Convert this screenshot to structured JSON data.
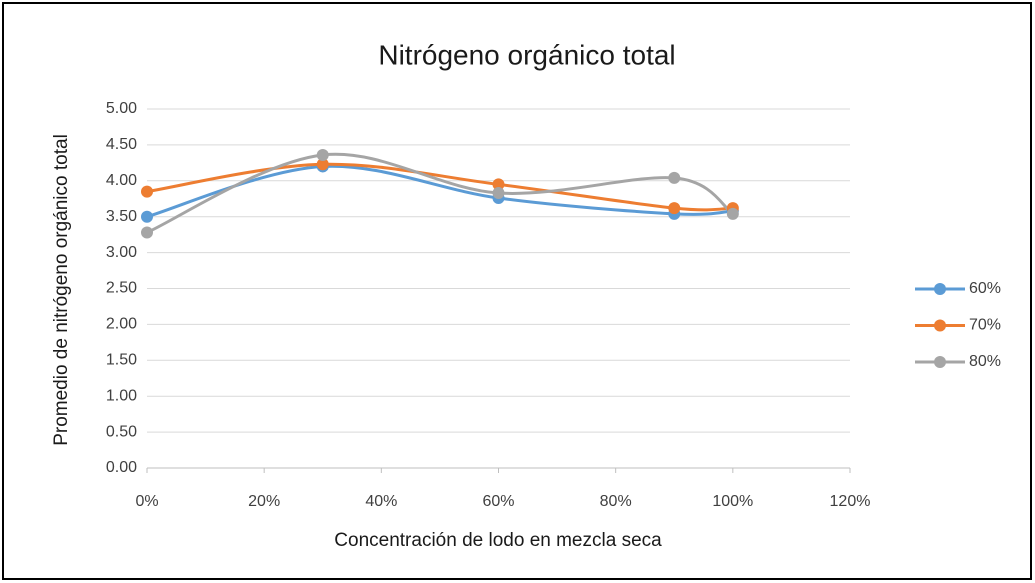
{
  "chart_data": {
    "type": "line",
    "smooth": true,
    "title": "Nitrógeno orgánico total",
    "x_label": "Concentración de lodo en mezcla seca",
    "y_label": "Promedio de nitrógeno orgánico total",
    "x": [
      0,
      30,
      60,
      90,
      100
    ],
    "series": [
      {
        "name": "60%",
        "color": "#5b9bd5",
        "values": [
          3.5,
          4.2,
          3.76,
          3.54,
          3.58
        ]
      },
      {
        "name": "70%",
        "color": "#ed7d31",
        "values": [
          3.85,
          4.23,
          3.95,
          3.62,
          3.62
        ]
      },
      {
        "name": "80%",
        "color": "#a5a5a5",
        "values": [
          3.28,
          4.36,
          3.83,
          4.04,
          3.54
        ]
      }
    ],
    "xlim": [
      0,
      120
    ],
    "xticks": [
      {
        "value": 0,
        "label": "0%"
      },
      {
        "value": 20,
        "label": "20%"
      },
      {
        "value": 40,
        "label": "40%"
      },
      {
        "value": 60,
        "label": "60%"
      },
      {
        "value": 80,
        "label": "80%"
      },
      {
        "value": 100,
        "label": "100%"
      },
      {
        "value": 120,
        "label": "120%"
      }
    ],
    "ylim": [
      0,
      5
    ],
    "yticks": [
      {
        "value": 0,
        "label": "0.00"
      },
      {
        "value": 0.5,
        "label": "0.50"
      },
      {
        "value": 1,
        "label": "1.00"
      },
      {
        "value": 1.5,
        "label": "1.50"
      },
      {
        "value": 2,
        "label": "2.00"
      },
      {
        "value": 2.5,
        "label": "2.50"
      },
      {
        "value": 3,
        "label": "3.00"
      },
      {
        "value": 3.5,
        "label": "3.50"
      },
      {
        "value": 4,
        "label": "4.00"
      },
      {
        "value": 4.5,
        "label": "4.50"
      },
      {
        "value": 5,
        "label": "5.00"
      }
    ],
    "grid": true,
    "legend": "right"
  }
}
